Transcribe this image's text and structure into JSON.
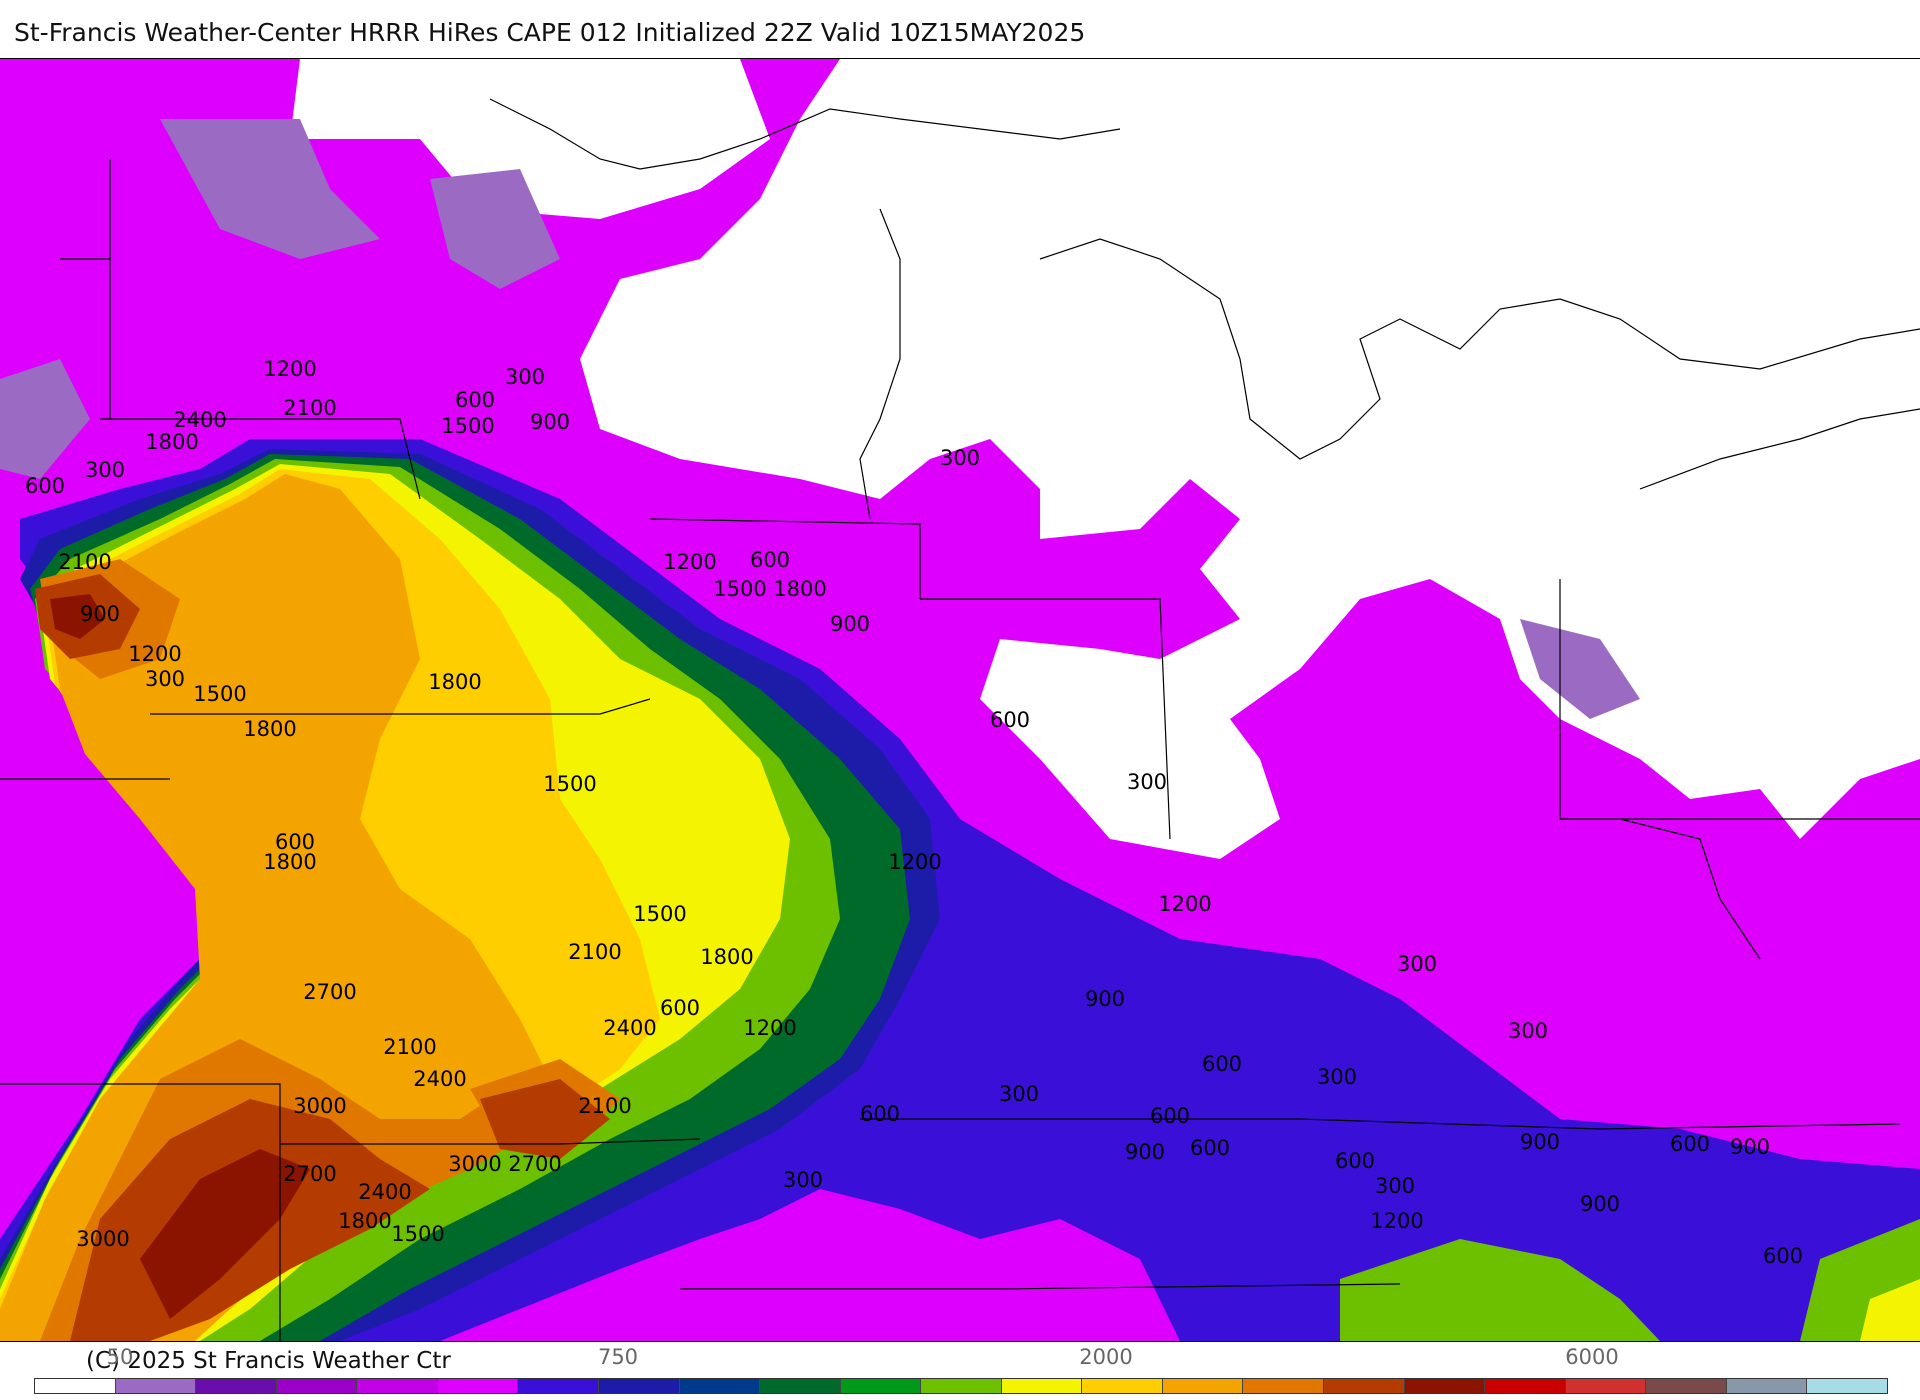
{
  "title": "St-Francis Weather-Center HRRR HiRes CAPE  012 Initialized  22Z Valid 10Z15MAY2025",
  "copyright": "(C) 2025 St Francis Weather Ctr",
  "colorbar": {
    "colors": [
      "#ffffff",
      "#9b6bc4",
      "#6a0dad",
      "#9a00c8",
      "#c200e6",
      "#dd00ff",
      "#3a10d8",
      "#1c1ca8",
      "#003a8c",
      "#006a2a",
      "#009a1a",
      "#6cc000",
      "#f4f400",
      "#ffce00",
      "#f4a400",
      "#e07800",
      "#b43c00",
      "#8a1400",
      "#c80000",
      "#d03030",
      "#7a4a4a",
      "#8898a8",
      "#a8dce4"
    ],
    "tick_labels": [
      "50",
      "750",
      "2000",
      "6000"
    ]
  },
  "contour_labels": [
    "1200",
    "300",
    "600",
    "2400",
    "2100",
    "300",
    "1800",
    "1500",
    "900",
    "600",
    "2100",
    "1200",
    "600",
    "900",
    "1200",
    "300",
    "1500",
    "1800",
    "900",
    "300",
    "1800",
    "1500",
    "600",
    "1800",
    "1500",
    "600",
    "1200",
    "300",
    "600",
    "1800",
    "1500",
    "2100",
    "1200",
    "1800",
    "900",
    "1200",
    "2700",
    "2400",
    "900",
    "600",
    "2100",
    "2400",
    "2100",
    "600",
    "3000",
    "300",
    "600",
    "300",
    "3000",
    "2700",
    "2700",
    "2400",
    "900",
    "600",
    "1800",
    "1500",
    "3000",
    "1200",
    "900",
    "300",
    "600",
    "300",
    "300",
    "300",
    "900",
    "600",
    "600"
  ]
}
